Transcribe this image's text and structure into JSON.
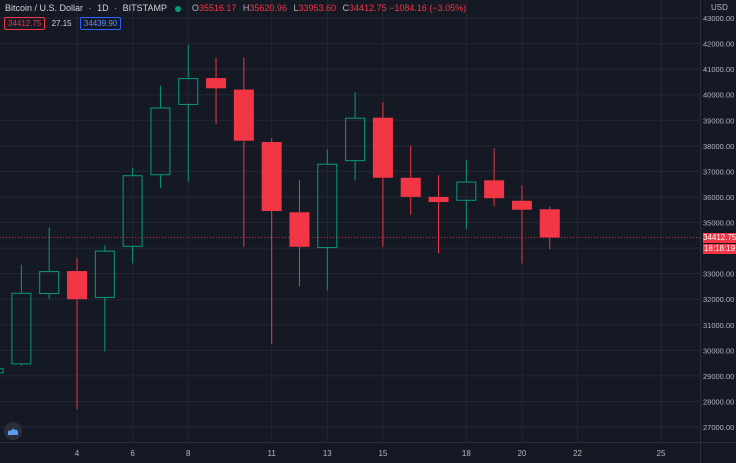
{
  "header": {
    "symbol": "Bitcoin / U.S. Dollar",
    "interval": "1D",
    "exchange": "BITSTAMP",
    "o_label": "O",
    "o_val": "35516.17",
    "h_label": "H",
    "h_val": "35620.96",
    "l_label": "L",
    "l_val": "33953.60",
    "c_label": "C",
    "c_val": "34412.75 −1084.16 (−3.05%)"
  },
  "subheader": {
    "bid": "34412.75",
    "spread": "27.15",
    "ask": "34439.90"
  },
  "axis": {
    "currency": "USD"
  },
  "last_price": {
    "value": "34412.75",
    "countdown": "18:18:19"
  },
  "colors": {
    "up": "#089981",
    "down": "#f23645",
    "background": "#151924",
    "grid": "#242733"
  },
  "chart_data": {
    "type": "candlestick",
    "ylim": [
      26500,
      43000
    ],
    "xlim": [
      1,
      27
    ],
    "grid": true,
    "y_ticks": [
      27000,
      28000,
      29000,
      30000,
      31000,
      32000,
      33000,
      34000,
      35000,
      36000,
      37000,
      38000,
      39000,
      40000,
      41000,
      42000,
      43000
    ],
    "y_tick_labels": [
      "27000.00",
      "28000.00",
      "29000.00",
      "30000.00",
      "31000.00",
      "32000.00",
      "33000.00",
      "34000.00",
      "35000.00",
      "36000.00",
      "37000.00",
      "38000.00",
      "39000.00",
      "40000.00",
      "41000.00",
      "42000.00",
      "43000.00"
    ],
    "x_ticks": [
      4,
      6,
      8,
      11,
      13,
      15,
      18,
      20,
      22,
      25
    ],
    "x_tick_labels": [
      "4",
      "6",
      "8",
      "11",
      "13",
      "15",
      "18",
      "20",
      "22",
      "25"
    ],
    "candles": [
      {
        "day": 1,
        "open": 29100,
        "high": 29400,
        "low": 28900,
        "close": 29300
      },
      {
        "day": 2,
        "open": 29450,
        "high": 33350,
        "low": 29400,
        "close": 32250
      },
      {
        "day": 3,
        "open": 32200,
        "high": 34800,
        "low": 32000,
        "close": 33100
      },
      {
        "day": 4,
        "open": 33100,
        "high": 33600,
        "low": 27700,
        "close": 32000
      },
      {
        "day": 5,
        "open": 32050,
        "high": 34100,
        "low": 29950,
        "close": 33900
      },
      {
        "day": 6,
        "open": 34050,
        "high": 37150,
        "low": 33400,
        "close": 36850
      },
      {
        "day": 7,
        "open": 36850,
        "high": 40350,
        "low": 36350,
        "close": 39500
      },
      {
        "day": 8,
        "open": 39600,
        "high": 41950,
        "low": 36600,
        "close": 40650
      },
      {
        "day": 9,
        "open": 40650,
        "high": 41450,
        "low": 38850,
        "close": 40250
      },
      {
        "day": 10,
        "open": 40200,
        "high": 41450,
        "low": 34050,
        "close": 38200
      },
      {
        "day": 11,
        "open": 38150,
        "high": 38300,
        "low": 30250,
        "close": 35450
      },
      {
        "day": 12,
        "open": 35400,
        "high": 36650,
        "low": 32500,
        "close": 34050
      },
      {
        "day": 13,
        "open": 34000,
        "high": 37850,
        "low": 32350,
        "close": 37300
      },
      {
        "day": 14,
        "open": 37400,
        "high": 40100,
        "low": 36650,
        "close": 39100
      },
      {
        "day": 15,
        "open": 39100,
        "high": 39700,
        "low": 34050,
        "close": 36750
      },
      {
        "day": 16,
        "open": 36750,
        "high": 38000,
        "low": 35300,
        "close": 36000
      },
      {
        "day": 17,
        "open": 36000,
        "high": 36850,
        "low": 33800,
        "close": 35800
      },
      {
        "day": 18,
        "open": 35850,
        "high": 37450,
        "low": 34750,
        "close": 36600
      },
      {
        "day": 19,
        "open": 36650,
        "high": 37900,
        "low": 35650,
        "close": 35950
      },
      {
        "day": 20,
        "open": 35850,
        "high": 36450,
        "low": 33400,
        "close": 35500
      },
      {
        "day": 21,
        "open": 35516.17,
        "high": 35620.96,
        "low": 33953.6,
        "close": 34412.75
      }
    ]
  }
}
